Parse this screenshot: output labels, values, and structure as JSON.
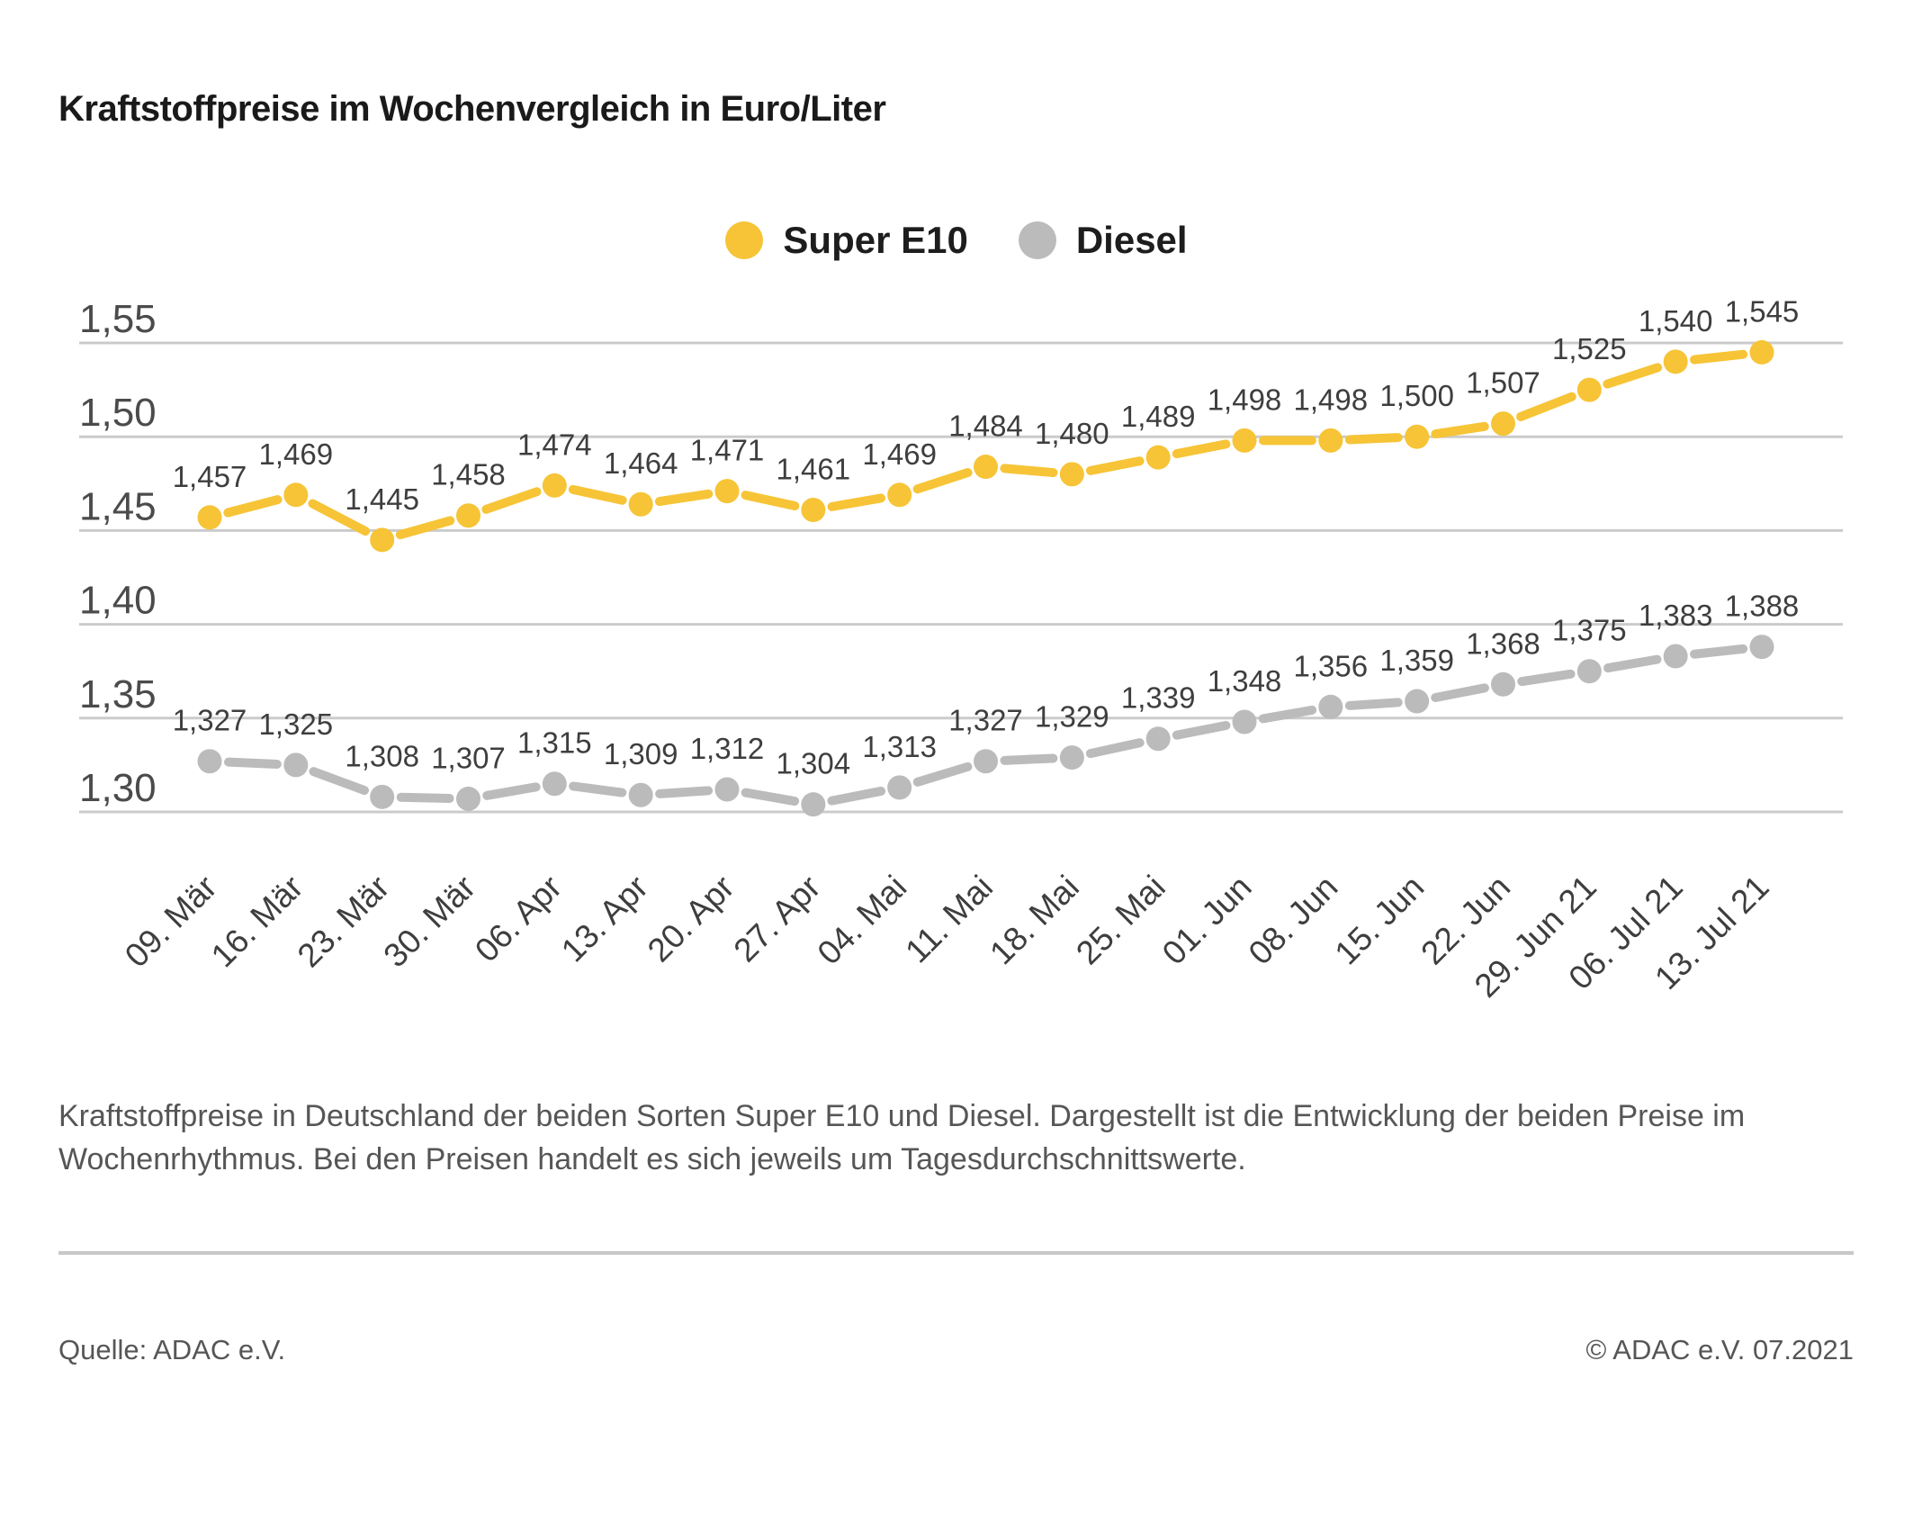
{
  "title": "Kraftstoffpreise im Wochenvergleich in Euro/Liter",
  "legend": {
    "items": [
      {
        "label": "Super E10",
        "color": "#F6C436"
      },
      {
        "label": "Diesel",
        "color": "#BBBBBB"
      }
    ]
  },
  "chart_data": {
    "type": "line",
    "title": "Kraftstoffpreise im Wochenvergleich in Euro/Liter",
    "unit": "Euro/Liter",
    "categories": [
      "09. Mär",
      "16. Mär",
      "23. Mär",
      "30. Mär",
      "06. Apr",
      "13. Apr",
      "20. Apr",
      "27. Apr",
      "04. Mai",
      "11. Mai",
      "18. Mai",
      "25. Mai",
      "01. Jun",
      "08. Jun",
      "15. Jun",
      "22. Jun",
      "29. Jun 21",
      "06. Jul 21",
      "13. Jul 21"
    ],
    "series": [
      {
        "name": "Super E10",
        "color": "#F6C436",
        "values": [
          1.457,
          1.469,
          1.445,
          1.458,
          1.474,
          1.464,
          1.471,
          1.461,
          1.469,
          1.484,
          1.48,
          1.489,
          1.498,
          1.498,
          1.5,
          1.507,
          1.525,
          1.54,
          1.545
        ]
      },
      {
        "name": "Diesel",
        "color": "#BBBBBB",
        "values": [
          1.327,
          1.325,
          1.308,
          1.307,
          1.315,
          1.309,
          1.312,
          1.304,
          1.313,
          1.327,
          1.329,
          1.339,
          1.348,
          1.356,
          1.359,
          1.368,
          1.375,
          1.383,
          1.388
        ]
      }
    ],
    "yticks": [
      1.55,
      1.5,
      1.45,
      1.4,
      1.35,
      1.3
    ],
    "ylim": [
      1.3,
      1.55
    ],
    "grid": true,
    "legend_position": "top",
    "value_labels": true,
    "number_format": "german-comma",
    "grid_color": "#CBCBCB",
    "tick_label_color": "#4b4b4b",
    "value_label_color": "#3e3e3e"
  },
  "caption": {
    "lines": [
      "Kraftstoffpreise in Deutschland der beiden Sorten Super E10 und Diesel. Dargestellt ist die Entwicklung der beiden Preise im",
      "Wochenrhythmus. Bei den Preisen handelt es sich jeweils um Tagesdurchschnittswerte."
    ]
  },
  "footer": {
    "source": "Quelle: ADAC e.V.",
    "copyright": "© ADAC e.V. 07.2021"
  }
}
